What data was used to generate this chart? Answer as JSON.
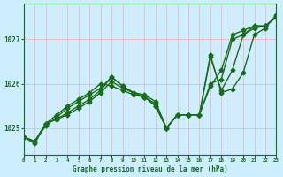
{
  "title": "Graphe pression niveau de la mer (hPa)",
  "background_color": "#cceeff",
  "grid_color": "#ffaaaa",
  "line_color": "#1a6b1a",
  "xlim": [
    0,
    23
  ],
  "ylim": [
    1024.4,
    1027.8
  ],
  "yticks": [
    1025,
    1026,
    1027
  ],
  "xticks": [
    0,
    1,
    2,
    3,
    4,
    5,
    6,
    7,
    8,
    9,
    10,
    11,
    12,
    13,
    14,
    15,
    16,
    17,
    18,
    19,
    20,
    21,
    22,
    23
  ],
  "series": [
    [
      1024.8,
      1024.7,
      1025.1,
      1025.2,
      1025.3,
      1025.45,
      1025.6,
      1025.8,
      1026.05,
      1025.9,
      1025.8,
      1025.75,
      1025.6,
      1025.0,
      1025.3,
      1025.3,
      1025.3,
      1026.6,
      1025.85,
      1026.3,
      1027.1,
      1027.3,
      1027.3,
      1027.5
    ],
    [
      1024.8,
      1024.7,
      1025.1,
      1025.3,
      1025.5,
      1025.65,
      1025.8,
      1026.0,
      1025.95,
      1025.85,
      1025.75,
      1025.7,
      1025.55,
      1025.0,
      1025.3,
      1025.3,
      1025.3,
      1025.95,
      1026.3,
      1027.1,
      1027.2,
      1027.3,
      1027.3,
      1027.5
    ],
    [
      1024.8,
      1024.7,
      1025.05,
      1025.25,
      1025.45,
      1025.6,
      1025.75,
      1025.9,
      1026.15,
      1025.95,
      1025.8,
      1025.7,
      1025.5,
      1025.0,
      1025.3,
      1025.3,
      1025.3,
      1026.0,
      1026.1,
      1027.0,
      1027.1,
      1027.25,
      1027.3,
      1027.5
    ]
  ],
  "main_series": [
    1024.8,
    1024.65,
    1025.1,
    1025.2,
    1025.35,
    1025.5,
    1025.65,
    1025.85,
    1026.15,
    1025.95,
    1025.78,
    1025.7,
    1025.5,
    1025.0,
    1025.3,
    1025.3,
    1025.3,
    1026.65,
    1025.8,
    1025.88,
    1026.25,
    1027.1,
    1027.25,
    1027.55
  ],
  "marker": "D",
  "markersize": 2.5,
  "linewidth": 1.0
}
